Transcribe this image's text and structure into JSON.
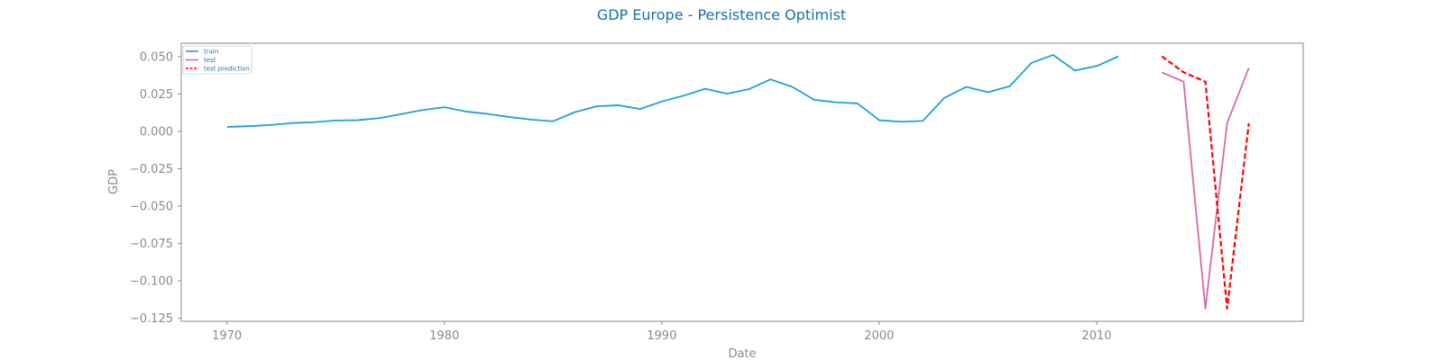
{
  "chart_data": {
    "type": "line",
    "title": "GDP Europe - Persistence Optimist",
    "xlabel": "Date",
    "ylabel": "GDP",
    "xlim": [
      1967.9,
      2019.5
    ],
    "ylim": [
      -0.127,
      0.059
    ],
    "x_ticks": [
      1970,
      1980,
      1990,
      2000,
      2010
    ],
    "y_ticks": [
      0.05,
      0.025,
      0.0,
      -0.025,
      -0.05,
      -0.075,
      -0.1,
      -0.125
    ],
    "y_tick_labels": [
      "0.050",
      "0.025",
      "0.000",
      "−0.025",
      "−0.050",
      "−0.075",
      "−0.100",
      "−0.125"
    ],
    "x_tick_labels": [
      "1970",
      "1980",
      "1990",
      "2000",
      "2010"
    ],
    "grid": false,
    "legend_position": "top-left",
    "series": [
      {
        "name": "train",
        "color": "#1f9fd9",
        "style": "solid",
        "x": [
          1970,
          1971,
          1972,
          1973,
          1974,
          1975,
          1976,
          1977,
          1978,
          1979,
          1980,
          1981,
          1982,
          1983,
          1984,
          1985,
          1986,
          1987,
          1988,
          1989,
          1990,
          1991,
          1992,
          1993,
          1994,
          1995,
          1996,
          1997,
          1998,
          1999,
          2000,
          2001,
          2002,
          2003,
          2004,
          2005,
          2006,
          2007,
          2008,
          2009,
          2010,
          2011
        ],
        "values": [
          0.003,
          0.0035,
          0.0043,
          0.0056,
          0.0062,
          0.0073,
          0.0075,
          0.0089,
          0.0115,
          0.0143,
          0.0162,
          0.0133,
          0.0117,
          0.0096,
          0.0079,
          0.0068,
          0.0129,
          0.0168,
          0.0175,
          0.015,
          0.02,
          0.0239,
          0.0285,
          0.0252,
          0.0282,
          0.0348,
          0.0298,
          0.0212,
          0.0195,
          0.0187,
          0.0075,
          0.0065,
          0.007,
          0.0225,
          0.0298,
          0.0262,
          0.0302,
          0.0458,
          0.0512,
          0.0407,
          0.0437,
          0.0502
        ]
      },
      {
        "name": "test",
        "color": "#d66aa7",
        "style": "solid",
        "x": [
          2013,
          2014,
          2015,
          2016,
          2017
        ],
        "values": [
          0.0395,
          0.0333,
          -0.1185,
          0.0055,
          0.0425
        ]
      },
      {
        "name": "test prediction",
        "color": "#ff0000",
        "style": "dashed",
        "x": [
          2013,
          2014,
          2015,
          2016,
          2017
        ],
        "values": [
          0.0502,
          0.0395,
          0.0333,
          -0.1185,
          0.0055
        ]
      }
    ]
  }
}
